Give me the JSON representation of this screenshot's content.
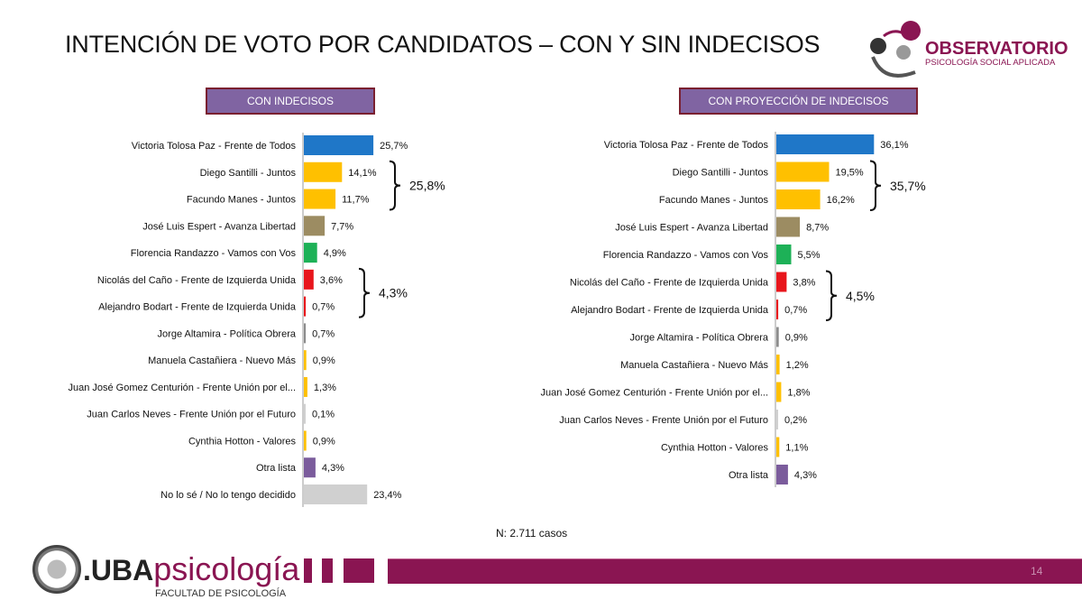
{
  "title": "INTENCIÓN DE VOTO POR CANDIDATOS – CON Y SIN INDECISOS",
  "logo_observatorio": {
    "name": "OBSERVATORIO",
    "subtitle": "PSICOLOGÍA SOCIAL APLICADA"
  },
  "logo_uba": {
    "prefix": ".UBA",
    "name": "psicología",
    "subtitle": "FACULTAD DE PSICOLOGÍA"
  },
  "sample": "N: 2.711 casos",
  "page_number": "14",
  "colors": {
    "blue": "#1f77c8",
    "yellow": "#ffc000",
    "khaki": "#9c8c62",
    "green": "#1db157",
    "red": "#e8161c",
    "gray": "#8c8c8c",
    "lightgray": "#d0d0d0",
    "purple": "#7b5c9c",
    "brand": "#8a1552"
  },
  "chart_data": [
    {
      "type": "bar",
      "orientation": "horizontal",
      "title": "CON INDECISOS",
      "unit": "%",
      "categories": [
        "Victoria Tolosa Paz - Frente de Todos",
        "Diego Santilli - Juntos",
        "Facundo Manes - Juntos",
        "José Luis Espert - Avanza Libertad",
        "Florencia Randazzo - Vamos con Vos",
        "Nicolás del Caño - Frente de Izquierda Unida",
        "Alejandro Bodart - Frente de Izquierda Unida",
        "Jorge Altamira - Política Obrera",
        "Manuela Castañiera - Nuevo Más",
        "Juan José Gomez Centurión - Frente Unión por el...",
        "Juan Carlos Neves - Frente Unión por el Futuro",
        "Cynthia Hotton - Valores",
        "Otra lista",
        "No lo sé / No lo tengo decidido"
      ],
      "values": [
        25.7,
        14.1,
        11.7,
        7.7,
        4.9,
        3.6,
        0.7,
        0.7,
        0.9,
        1.3,
        0.1,
        0.9,
        4.3,
        23.4
      ],
      "labels": [
        "25,7%",
        "14,1%",
        "11,7%",
        "7,7%",
        "4,9%",
        "3,6%",
        "0,7%",
        "0,7%",
        "0,9%",
        "1,3%",
        "0,1%",
        "0,9%",
        "4,3%",
        "23,4%"
      ],
      "bar_colors": [
        "blue",
        "yellow",
        "yellow",
        "khaki",
        "green",
        "red",
        "red",
        "gray",
        "yellow",
        "yellow",
        "lightgray",
        "yellow",
        "purple",
        "lightgray"
      ],
      "annotations": [
        {
          "from": 1,
          "to": 2,
          "text": "25,8%"
        },
        {
          "from": 5,
          "to": 6,
          "text": "4,3%"
        }
      ]
    },
    {
      "type": "bar",
      "orientation": "horizontal",
      "title": "CON PROYECCIÓN DE INDECISOS",
      "unit": "%",
      "categories": [
        "Victoria Tolosa Paz - Frente de Todos",
        "Diego Santilli - Juntos",
        "Facundo Manes - Juntos",
        "José Luis Espert - Avanza Libertad",
        "Florencia Randazzo - Vamos con Vos",
        "Nicolás del Caño - Frente de Izquierda Unida",
        "Alejandro Bodart - Frente de Izquierda Unida",
        "Jorge Altamira - Política Obrera",
        "Manuela Castañiera - Nuevo Más",
        "Juan José Gomez Centurión - Frente Unión por el...",
        "Juan Carlos Neves - Frente Unión por el Futuro",
        "Cynthia Hotton - Valores",
        "Otra lista"
      ],
      "values": [
        36.1,
        19.5,
        16.2,
        8.7,
        5.5,
        3.8,
        0.7,
        0.9,
        1.2,
        1.8,
        0.2,
        1.1,
        4.3
      ],
      "labels": [
        "36,1%",
        "19,5%",
        "16,2%",
        "8,7%",
        "5,5%",
        "3,8%",
        "0,7%",
        "0,9%",
        "1,2%",
        "1,8%",
        "0,2%",
        "1,1%",
        "4,3%"
      ],
      "bar_colors": [
        "blue",
        "yellow",
        "yellow",
        "khaki",
        "green",
        "red",
        "red",
        "gray",
        "yellow",
        "yellow",
        "lightgray",
        "yellow",
        "purple"
      ],
      "annotations": [
        {
          "from": 1,
          "to": 2,
          "text": "35,7%"
        },
        {
          "from": 5,
          "to": 6,
          "text": "4,5%"
        }
      ]
    }
  ]
}
